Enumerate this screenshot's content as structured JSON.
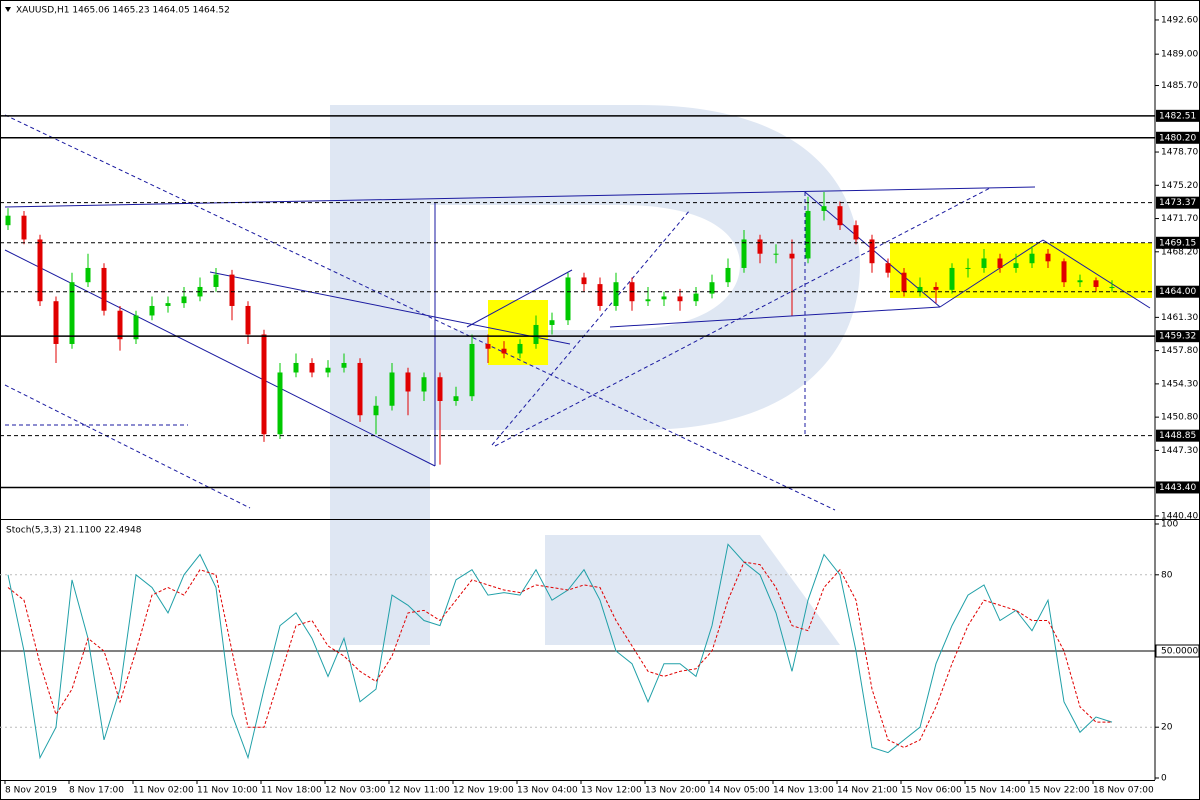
{
  "chart_data": {
    "type": "candlestick",
    "title": "XAUUSD,H1 1465.06 1465.23 1464.05 1464.52",
    "up_color": "#00c800",
    "down_color": "#e00000",
    "categories": [
      "8 Nov 2019",
      null,
      null,
      null,
      "8 Nov 17:00",
      null,
      null,
      null,
      "11 Nov 02:00",
      null,
      null,
      null,
      "11 Nov 10:00",
      null,
      null,
      null,
      "11 Nov 18:00",
      null,
      null,
      null,
      "12 Nov 03:00",
      null,
      null,
      null,
      "12 Nov 11:00",
      null,
      null,
      null,
      "12 Nov 19:00",
      null,
      null,
      null,
      "13 Nov 04:00",
      null,
      null,
      null,
      "13 Nov 12:00",
      null,
      null,
      null,
      "13 Nov 20:00",
      null,
      null,
      null,
      "14 Nov 05:00",
      null,
      null,
      null,
      "14 Nov 13:00",
      null,
      null,
      null,
      "14 Nov 21:00",
      null,
      null,
      null,
      "15 Nov 06:00",
      null,
      null,
      null,
      "15 Nov 14:00",
      null,
      null,
      null,
      "15 Nov 22:00",
      null,
      null,
      null,
      "18 Nov 07:00",
      null
    ],
    "open": [
      1471.0,
      1472.0,
      1469.5,
      1463.0,
      1458.5,
      1465.0,
      1466.5,
      1462.0,
      1459.0,
      1461.5,
      1462.5,
      1462.8,
      1463.5,
      1464.5,
      1465.8,
      1462.5,
      1459.5,
      1449.0,
      1455.5,
      1456.5,
      1455.5,
      1456.0,
      1456.5,
      1451.0,
      1452.0,
      1455.5,
      1453.5,
      1455.0,
      1452.5,
      1453.0,
      1458.5,
      1458.0,
      1457.5,
      1458.5,
      1460.5,
      1461.0,
      1465.5,
      1464.8,
      1462.5,
      1465.0,
      1463.0,
      1463.2,
      1463.5,
      1463.0,
      1463.8,
      1465.0,
      1466.5,
      1469.5,
      1468.0,
      1468.0,
      1467.5,
      1472.5,
      1473.0,
      1471.0,
      1469.5,
      1467.0,
      1466.0,
      1464.0,
      1464.5,
      1464.2,
      1466.5,
      1466.5,
      1467.5,
      1466.5,
      1467.0,
      1468.0,
      1467.2,
      1465.0,
      1465.2,
      1464.5
    ],
    "high": [
      1472.8,
      1472.5,
      1470.0,
      1463.5,
      1466.0,
      1468.0,
      1467.0,
      1462.5,
      1462.0,
      1463.5,
      1463.5,
      1464.5,
      1465.5,
      1466.5,
      1466.3,
      1463.0,
      1460.0,
      1456.5,
      1457.5,
      1457.0,
      1456.8,
      1457.5,
      1457.0,
      1453.0,
      1456.5,
      1456.0,
      1455.5,
      1455.5,
      1454.0,
      1459.5,
      1459.5,
      1458.8,
      1459.0,
      1461.5,
      1461.8,
      1466.0,
      1466.0,
      1465.5,
      1466.0,
      1465.5,
      1464.5,
      1464.0,
      1464.3,
      1464.5,
      1465.8,
      1467.5,
      1470.5,
      1470.0,
      1469.0,
      1469.5,
      1474.0,
      1474.5,
      1473.5,
      1471.5,
      1470.0,
      1467.5,
      1466.5,
      1465.5,
      1465.0,
      1467.0,
      1467.5,
      1468.5,
      1468.0,
      1468.0,
      1468.8,
      1468.5,
      1467.5,
      1465.8,
      1465.5,
      1465.2
    ],
    "low": [
      1470.5,
      1469.0,
      1462.5,
      1456.5,
      1458.0,
      1464.5,
      1461.5,
      1457.8,
      1458.5,
      1461.0,
      1461.8,
      1462.3,
      1463.0,
      1464.0,
      1461.0,
      1458.5,
      1448.2,
      1448.5,
      1455.0,
      1455.0,
      1455.0,
      1455.5,
      1450.3,
      1449.0,
      1451.5,
      1451.0,
      1452.5,
      1445.8,
      1452.0,
      1452.5,
      1456.5,
      1457.0,
      1457.0,
      1458.0,
      1459.5,
      1460.5,
      1464.0,
      1462.0,
      1462.0,
      1462.0,
      1462.5,
      1462.5,
      1462.0,
      1462.5,
      1463.3,
      1464.5,
      1466.0,
      1467.0,
      1467.0,
      1461.5,
      1467.0,
      1471.5,
      1470.5,
      1469.0,
      1466.0,
      1465.5,
      1463.5,
      1463.5,
      1462.8,
      1463.8,
      1465.5,
      1466.0,
      1466.0,
      1466.0,
      1466.5,
      1466.5,
      1464.5,
      1464.5,
      1464.0,
      1464.0
    ],
    "close": [
      1472.0,
      1469.5,
      1463.0,
      1458.5,
      1465.0,
      1466.5,
      1462.0,
      1459.0,
      1461.5,
      1462.5,
      1462.8,
      1463.5,
      1464.5,
      1465.8,
      1462.5,
      1459.5,
      1449.0,
      1455.5,
      1456.5,
      1455.5,
      1456.0,
      1456.5,
      1451.0,
      1452.0,
      1455.5,
      1453.5,
      1455.0,
      1452.5,
      1453.0,
      1458.5,
      1458.0,
      1457.5,
      1458.5,
      1460.5,
      1461.0,
      1465.5,
      1464.8,
      1462.5,
      1465.0,
      1463.0,
      1463.2,
      1463.5,
      1463.0,
      1463.8,
      1465.0,
      1466.5,
      1469.5,
      1468.0,
      1468.0,
      1467.5,
      1472.5,
      1473.0,
      1471.0,
      1469.5,
      1467.0,
      1466.0,
      1464.0,
      1464.5,
      1464.2,
      1466.5,
      1466.5,
      1467.5,
      1466.5,
      1467.0,
      1468.0,
      1467.2,
      1465.0,
      1465.2,
      1464.5,
      1464.5
    ],
    "ylim": [
      1440.08,
      1494.49
    ],
    "yticks": [
      {
        "value": 1492.6,
        "label": "1492.60"
      },
      {
        "value": 1489.0,
        "label": "1489.00"
      },
      {
        "value": 1485.7,
        "label": "1485.70"
      },
      {
        "value": 1478.7,
        "label": "1478.70"
      },
      {
        "value": 1475.2,
        "label": "1475.20"
      },
      {
        "value": 1471.7,
        "label": "1471.70"
      },
      {
        "value": 1468.2,
        "label": "1468.20"
      },
      {
        "value": 1461.3,
        "label": "1461.30"
      },
      {
        "value": 1457.8,
        "label": "1457.80"
      },
      {
        "value": 1454.3,
        "label": "1454.30"
      },
      {
        "value": 1450.8,
        "label": "1450.80"
      },
      {
        "value": 1447.3,
        "label": "1447.30"
      },
      {
        "value": 1440.4,
        "label": "1440.40"
      }
    ],
    "levels": [
      {
        "value": 1482.51,
        "label": "1482.51",
        "style": "solid"
      },
      {
        "value": 1480.2,
        "label": "1480.20",
        "style": "solid"
      },
      {
        "value": 1473.37,
        "label": "1473.37",
        "style": "dashed"
      },
      {
        "value": 1469.15,
        "label": "1469.15",
        "style": "dashed"
      },
      {
        "value": 1464.0,
        "label": "1464.00",
        "style": "dashed"
      },
      {
        "value": 1459.32,
        "label": "1459.32",
        "style": "solid"
      },
      {
        "value": 1448.85,
        "label": "1448.85",
        "style": "dashed"
      },
      {
        "value": 1443.4,
        "label": "1443.40",
        "style": "solid"
      }
    ],
    "indicator": {
      "type": "line",
      "title": "Stoch(5,3,3) 21.1100 22.4948",
      "ylim": [
        0,
        100
      ],
      "yticks": [
        100,
        80,
        {
          "value": 50,
          "label": "50.0000"
        },
        20,
        0
      ],
      "level_lines": [
        {
          "value": 80,
          "style": "dotted"
        },
        {
          "value": 50,
          "style": "solid"
        },
        {
          "value": 20,
          "style": "dotted"
        }
      ],
      "series": [
        {
          "color": "#20a0a8",
          "style": "solid",
          "values": [
            80,
            50,
            8,
            20,
            78,
            55,
            15,
            35,
            80,
            75,
            65,
            80,
            88,
            75,
            25,
            8,
            35,
            60,
            65,
            55,
            40,
            55,
            30,
            35,
            72,
            68,
            62,
            60,
            78,
            82,
            72,
            73,
            72,
            82,
            70,
            74,
            82,
            70,
            50,
            45,
            30,
            45,
            45,
            40,
            60,
            92,
            85,
            80,
            65,
            42,
            70,
            88,
            80,
            50,
            12,
            10,
            15,
            20,
            45,
            60,
            72,
            76,
            62,
            66,
            58,
            70,
            30,
            18,
            24,
            22
          ]
        },
        {
          "color": "#e00000",
          "style": "dashed",
          "values": [
            75,
            70,
            45,
            25,
            35,
            55,
            50,
            30,
            50,
            72,
            75,
            72,
            82,
            80,
            50,
            20,
            20,
            40,
            60,
            62,
            52,
            48,
            42,
            38,
            48,
            65,
            66,
            62,
            70,
            78,
            76,
            74,
            73,
            76,
            75,
            74,
            76,
            75,
            62,
            52,
            42,
            40,
            42,
            43,
            50,
            70,
            85,
            84,
            75,
            60,
            58,
            75,
            82,
            70,
            35,
            15,
            12,
            15,
            28,
            45,
            60,
            70,
            68,
            66,
            62,
            62,
            50,
            28,
            22,
            22
          ]
        }
      ]
    }
  }
}
